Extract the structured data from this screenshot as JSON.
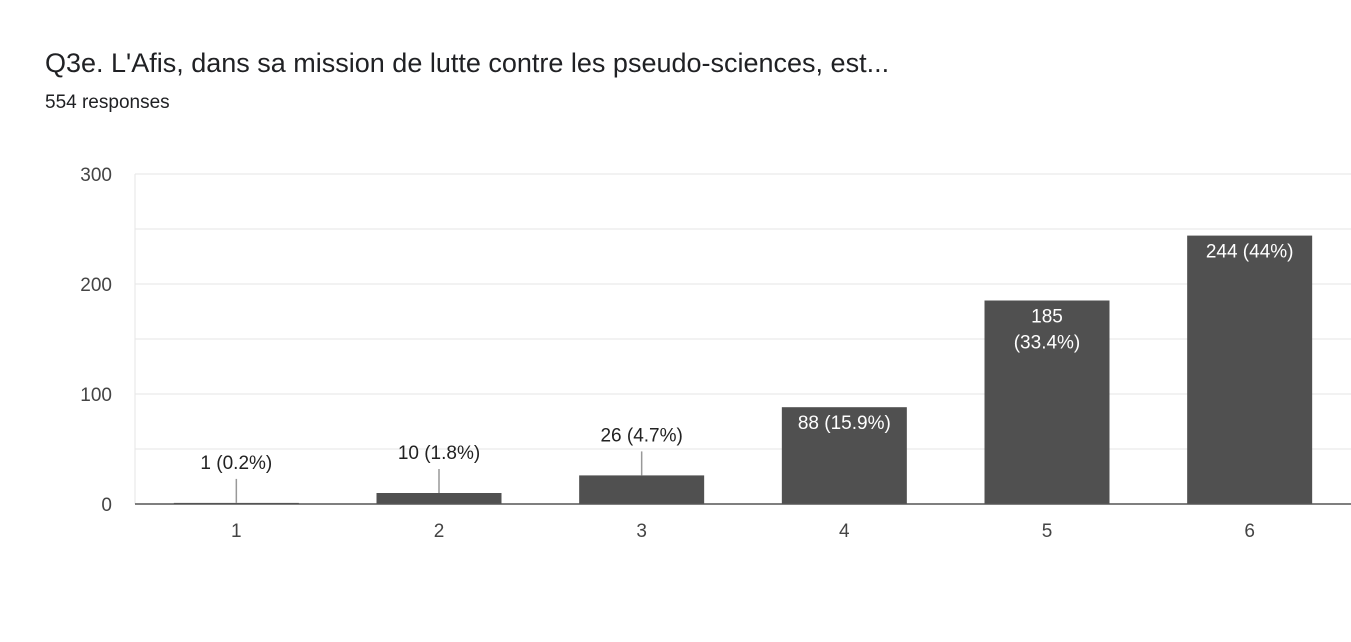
{
  "question": {
    "title": "Q3e. L'Afis, dans sa mission de lutte contre les pseudo-sciences, est...",
    "responses": "554 responses"
  },
  "colors": {
    "bar": "#505050",
    "grid": "#e6e6e6",
    "axis": "#555555",
    "label_inside": "#ffffff",
    "label_outside": "#222222"
  },
  "chart_data": {
    "type": "bar",
    "title": "Q3e. L'Afis, dans sa mission de lutte contre les pseudo-sciences, est...",
    "subtitle": "554 responses",
    "categories": [
      "1",
      "2",
      "3",
      "4",
      "5",
      "6"
    ],
    "values": [
      1,
      10,
      26,
      88,
      185,
      244
    ],
    "data_labels": [
      [
        "1 (0.2%)"
      ],
      [
        "10 (1.8%)"
      ],
      [
        "26 (4.7%)"
      ],
      [
        "88 (15.9%)"
      ],
      [
        "185",
        "(33.4%)"
      ],
      [
        "244 (44%)"
      ]
    ],
    "ylim": [
      0,
      300
    ],
    "yticks": [
      0,
      100,
      200,
      300
    ],
    "grid": true,
    "legend": "none",
    "xlabel": "",
    "ylabel": ""
  }
}
